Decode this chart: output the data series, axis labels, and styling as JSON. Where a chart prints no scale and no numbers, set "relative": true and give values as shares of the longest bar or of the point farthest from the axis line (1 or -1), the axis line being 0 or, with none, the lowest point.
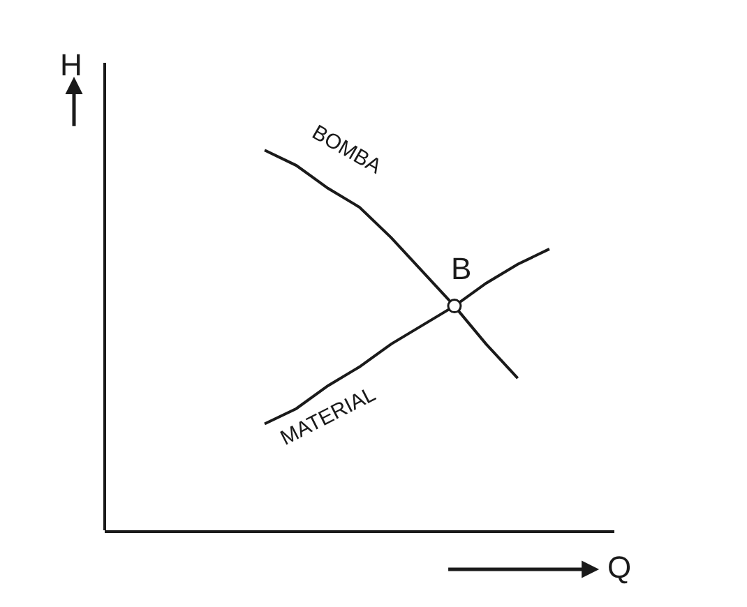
{
  "chart_data": {
    "type": "line",
    "relative": true,
    "xlabel": "Q",
    "ylabel": "H",
    "legend": false,
    "grid": false,
    "categories": [
      null,
      null,
      null,
      null,
      null,
      null,
      null,
      null,
      null,
      null,
      null,
      null,
      null,
      null,
      null
    ],
    "series": [
      {
        "name": "BOMBA",
        "color": "#1a1a1a",
        "values": [
          null,
          null,
          null,
          null,
          1,
          0.96,
          0.9,
          0.85,
          0.77,
          0.68,
          0.59,
          0.49,
          0.4,
          null,
          null
        ]
      },
      {
        "name": "MATERIAL",
        "color": "#1a1a1a",
        "values": [
          null,
          null,
          null,
          null,
          0.28,
          0.32,
          0.38,
          0.43,
          0.49,
          0.54,
          0.59,
          0.65,
          0.7,
          0.74,
          null
        ]
      },
      {
        "name": "B",
        "marker": "circle",
        "color": "#1a1a1a",
        "values": [
          null,
          null,
          null,
          null,
          null,
          null,
          null,
          null,
          null,
          null,
          0.59,
          null,
          null,
          null,
          null
        ]
      }
    ]
  }
}
